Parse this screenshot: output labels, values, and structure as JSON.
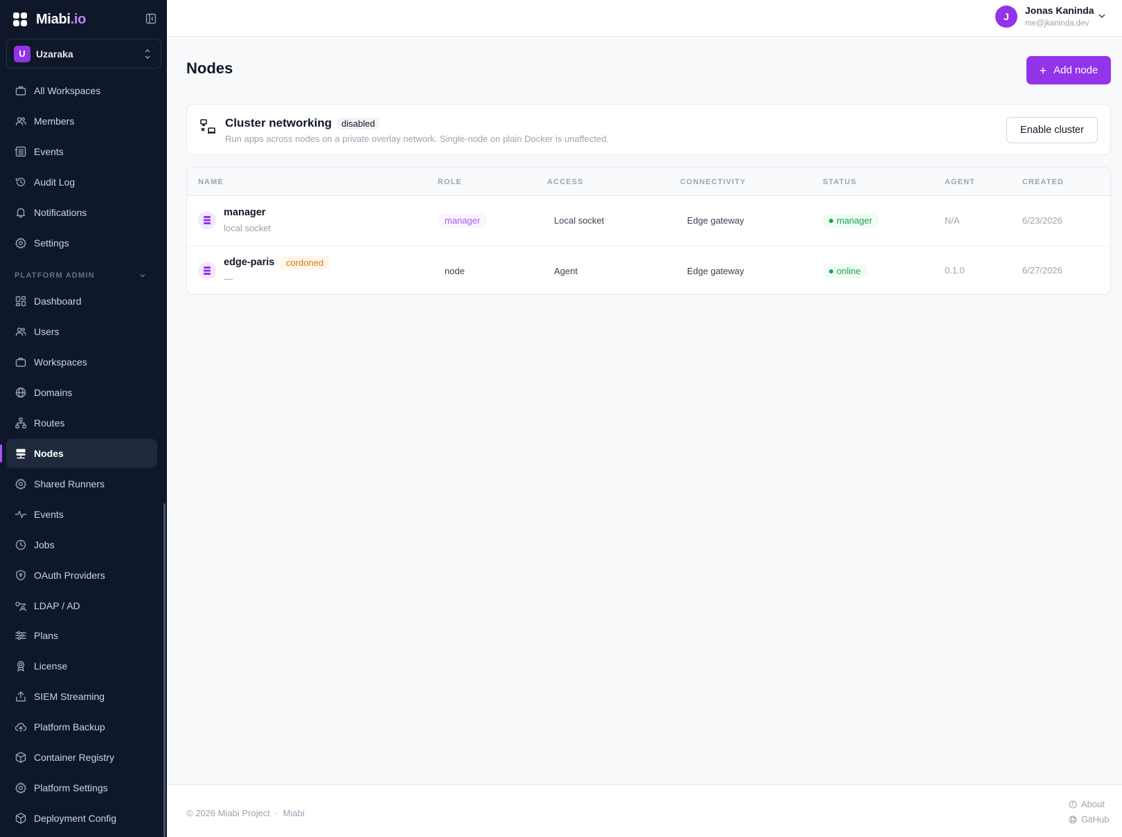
{
  "brand": {
    "name": "Miabi",
    "suffix": ".io"
  },
  "workspace": {
    "initial": "U",
    "name": "Uzaraka"
  },
  "sidebar": {
    "items": [
      {
        "label": "All Workspaces",
        "icon": "briefcase-icon"
      },
      {
        "label": "Members",
        "icon": "users-icon"
      },
      {
        "label": "Events",
        "icon": "list-icon"
      },
      {
        "label": "Audit Log",
        "icon": "history-icon"
      },
      {
        "label": "Notifications",
        "icon": "bell-icon"
      },
      {
        "label": "Settings",
        "icon": "gear-icon"
      }
    ],
    "section_label": "PLATFORM ADMIN",
    "admin_items": [
      {
        "label": "Dashboard",
        "icon": "dashboard-icon"
      },
      {
        "label": "Users",
        "icon": "users-icon"
      },
      {
        "label": "Workspaces",
        "icon": "briefcase-icon"
      },
      {
        "label": "Domains",
        "icon": "globe-icon"
      },
      {
        "label": "Routes",
        "icon": "network-icon"
      },
      {
        "label": "Nodes",
        "icon": "server-icon",
        "active": true
      },
      {
        "label": "Shared Runners",
        "icon": "gear-icon"
      },
      {
        "label": "Events",
        "icon": "activity-icon"
      },
      {
        "label": "Jobs",
        "icon": "clock-icon"
      },
      {
        "label": "OAuth Providers",
        "icon": "shield-icon"
      },
      {
        "label": "LDAP / AD",
        "icon": "user-key-icon"
      },
      {
        "label": "Plans",
        "icon": "sliders-icon"
      },
      {
        "label": "License",
        "icon": "badge-icon"
      },
      {
        "label": "SIEM Streaming",
        "icon": "upload-icon"
      },
      {
        "label": "Platform Backup",
        "icon": "cloud-upload-icon"
      },
      {
        "label": "Container Registry",
        "icon": "box-icon"
      },
      {
        "label": "Platform Settings",
        "icon": "gear-icon"
      },
      {
        "label": "Deployment Config",
        "icon": "box-icon"
      }
    ]
  },
  "user": {
    "initial": "J",
    "name": "Jonas Kaninda",
    "email": "me@jkaninda.dev"
  },
  "page": {
    "title": "Nodes",
    "add_button": "Add node"
  },
  "cluster": {
    "title": "Cluster networking",
    "badge": "disabled",
    "description": "Run apps across nodes on a private overlay network. Single-node on plain Docker is unaffected.",
    "button": "Enable cluster"
  },
  "table": {
    "headers": [
      "NAME",
      "ROLE",
      "ACCESS",
      "CONNECTIVITY",
      "STATUS",
      "AGENT",
      "CREATED"
    ],
    "rows": [
      {
        "name": "manager",
        "sub": "local socket",
        "tag": "",
        "role": "manager",
        "access": "Local socket",
        "connectivity": "Edge gateway",
        "status": "manager",
        "agent": "N/A",
        "created": "6/23/2026"
      },
      {
        "name": "edge-paris",
        "sub": "—",
        "tag": "cordoned",
        "role": "node",
        "access": "Agent",
        "connectivity": "Edge gateway",
        "status": "online",
        "agent": "0.1.0",
        "created": "6/27/2026"
      }
    ]
  },
  "footer": {
    "copyright": "© 2026 Miabi Project  ·  Miabi",
    "about": "About",
    "github": "GitHub"
  }
}
